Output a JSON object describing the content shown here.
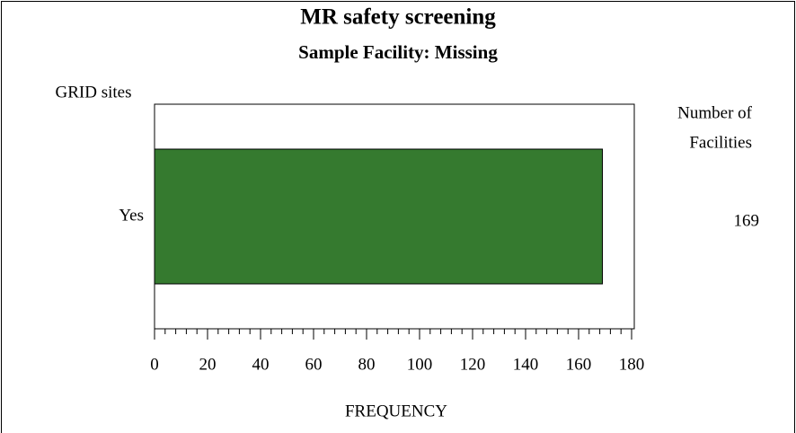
{
  "chart_data": {
    "type": "hbar",
    "title": "MR safety screening",
    "subtitle": "Sample Facility: Missing",
    "y_label": "GRID sites",
    "x_label": "FREQUENCY",
    "stat_label": [
      "Number of",
      "Facilities"
    ],
    "categories": [
      "Yes"
    ],
    "values": [
      169
    ],
    "color": "#357a2f",
    "xlim": [
      0,
      180
    ],
    "xticks": [
      0,
      20,
      40,
      60,
      80,
      100,
      120,
      140,
      160,
      180
    ],
    "xticks_minor": [
      4,
      8,
      12,
      16,
      24,
      28,
      32,
      36,
      44,
      48,
      52,
      56,
      64,
      68,
      72,
      76,
      84,
      88,
      92,
      96,
      104,
      108,
      112,
      116,
      124,
      128,
      132,
      136,
      144,
      148,
      152,
      156,
      164,
      168,
      172,
      176
    ]
  }
}
